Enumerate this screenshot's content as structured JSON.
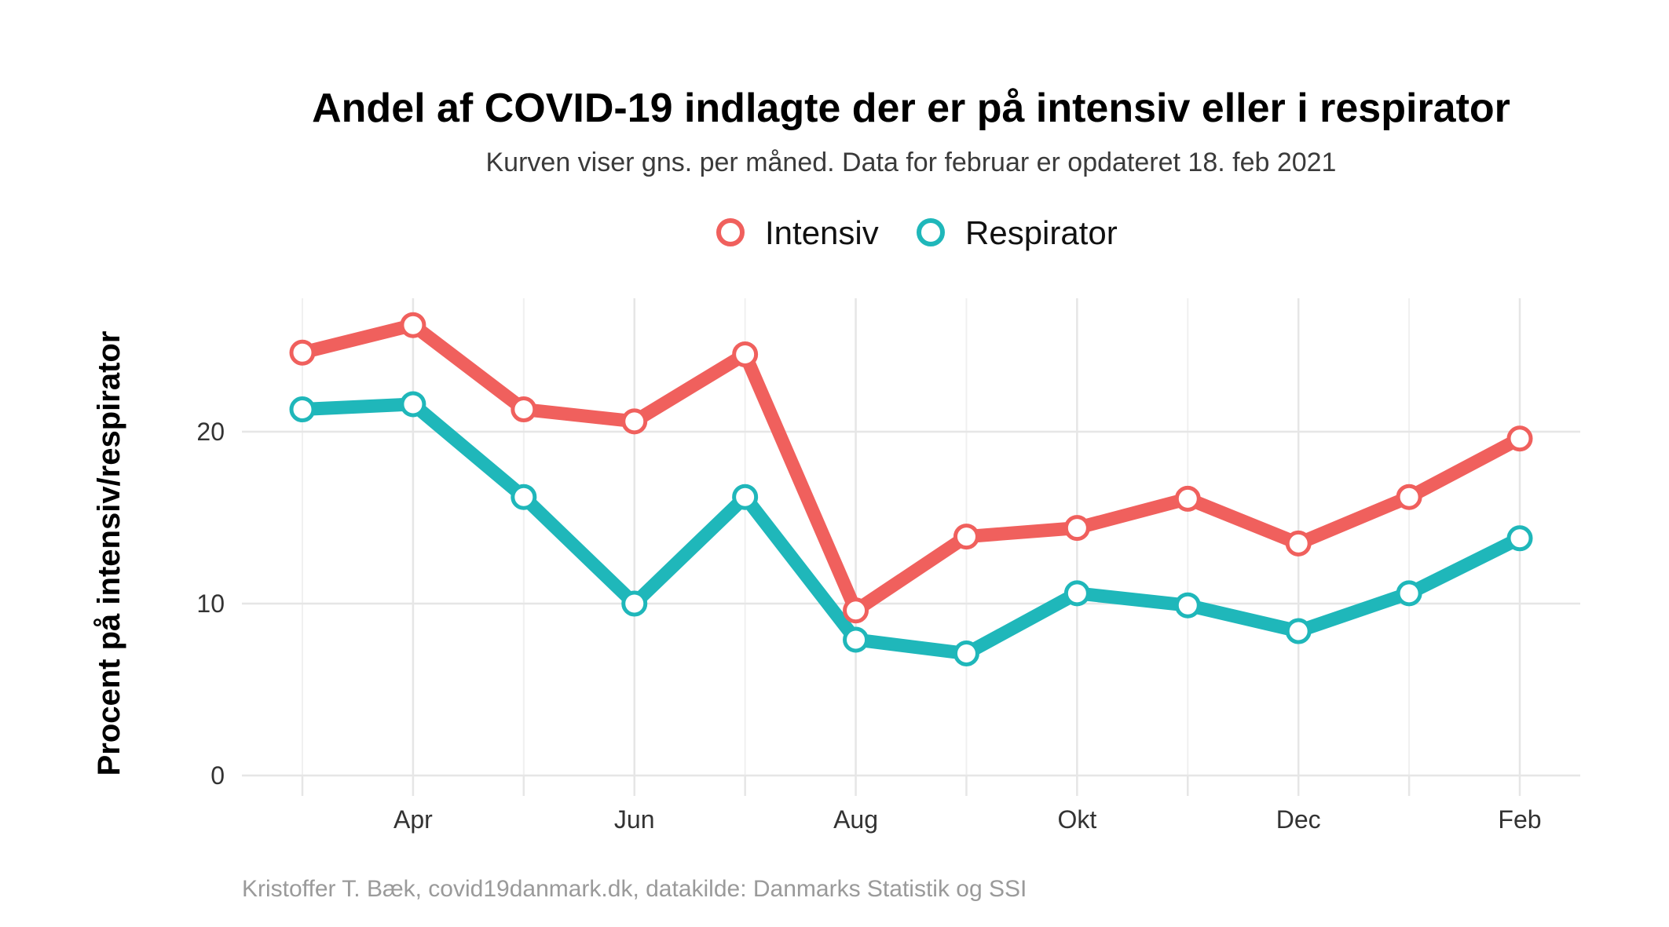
{
  "chart_data": {
    "type": "line",
    "title": "Andel af COVID-19 indlagte der er på intensiv eller i respirator",
    "subtitle": "Kurven viser gns. per måned. Data for februar er opdateret 18. feb 2021",
    "ylabel": "Procent på intensiv/respirator",
    "xlabel": "",
    "caption": "Kristoffer T. Bæk, covid19danmark.dk, datakilde: Danmarks Statistik og SSI",
    "x": [
      "2020-03",
      "2020-04",
      "2020-05",
      "2020-06",
      "2020-07",
      "2020-08",
      "2020-09",
      "2020-10",
      "2020-11",
      "2020-12",
      "2021-01",
      "2021-02"
    ],
    "x_tick_labels": [
      {
        "x": "2020-04",
        "label": "Apr"
      },
      {
        "x": "2020-06",
        "label": "Jun"
      },
      {
        "x": "2020-08",
        "label": "Aug"
      },
      {
        "x": "2020-10",
        "label": "Okt"
      },
      {
        "x": "2020-12",
        "label": "Dec"
      },
      {
        "x": "2021-02",
        "label": "Feb"
      }
    ],
    "y_ticks": [
      0,
      10,
      20
    ],
    "ylim": [
      0,
      26.5
    ],
    "grid": true,
    "legend_position": "top",
    "series": [
      {
        "name": "Intensiv",
        "color": "#F0605D",
        "values": [
          24.6,
          26.2,
          21.3,
          20.6,
          24.5,
          9.6,
          13.9,
          14.4,
          16.1,
          13.5,
          16.2,
          19.6
        ]
      },
      {
        "name": "Respirator",
        "color": "#1FB7BA",
        "values": [
          21.3,
          21.6,
          16.2,
          10.0,
          16.2,
          7.9,
          7.1,
          10.6,
          9.9,
          8.4,
          10.6,
          13.8
        ]
      }
    ]
  }
}
